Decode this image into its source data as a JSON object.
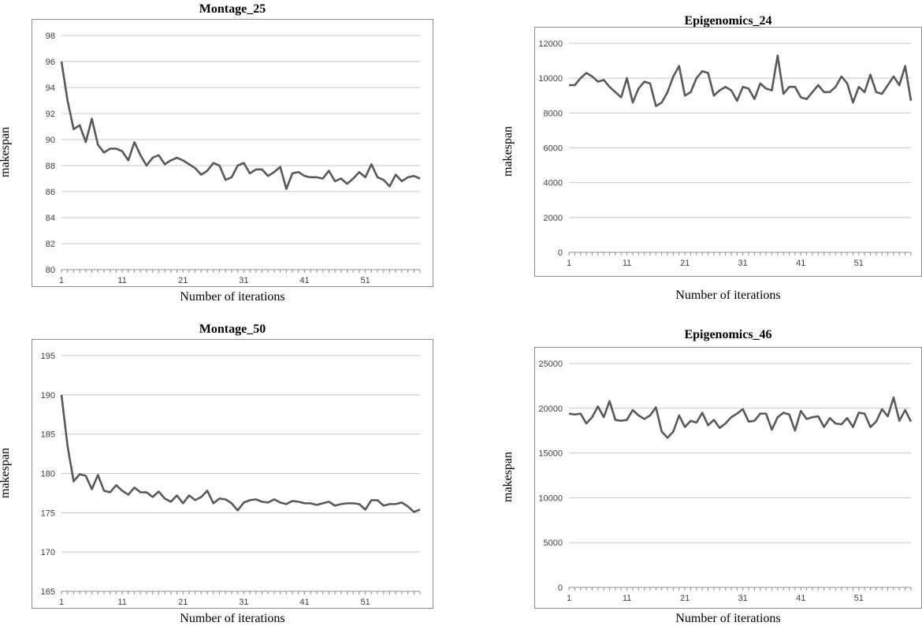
{
  "chart_data": [
    {
      "type": "line",
      "title": "Montage_25",
      "xlabel": "Number of iterations",
      "ylabel": "makespan",
      "ylim": [
        80,
        98
      ],
      "yticks": [
        "80",
        "82",
        "84",
        "86",
        "88",
        "90",
        "92",
        "94",
        "96",
        "98"
      ],
      "xticks": [
        "1",
        "11",
        "21",
        "31",
        "41",
        "51"
      ],
      "grid": true,
      "line_color": "#595959",
      "x": [
        1,
        2,
        3,
        4,
        5,
        6,
        7,
        8,
        9,
        10,
        11,
        12,
        13,
        14,
        15,
        16,
        17,
        18,
        19,
        20,
        21,
        22,
        23,
        24,
        25,
        26,
        27,
        28,
        29,
        30,
        31,
        32,
        33,
        34,
        35,
        36,
        37,
        38,
        39,
        40,
        41,
        42,
        43,
        44,
        45,
        46,
        47,
        48,
        49,
        50,
        51,
        52,
        53,
        54,
        55,
        56,
        57,
        58,
        59,
        60
      ],
      "values": [
        96.0,
        93.0,
        90.8,
        91.1,
        89.8,
        91.6,
        89.6,
        89.0,
        89.3,
        89.3,
        89.1,
        88.4,
        89.8,
        88.8,
        88.0,
        88.6,
        88.8,
        88.1,
        88.4,
        88.6,
        88.4,
        88.1,
        87.8,
        87.3,
        87.6,
        88.2,
        88.0,
        86.9,
        87.1,
        88.0,
        88.2,
        87.4,
        87.7,
        87.7,
        87.2,
        87.5,
        87.9,
        86.2,
        87.4,
        87.5,
        87.2,
        87.1,
        87.1,
        87.0,
        87.6,
        86.8,
        87.0,
        86.6,
        87.0,
        87.5,
        87.1,
        88.1,
        87.1,
        86.9,
        86.4,
        87.3,
        86.8,
        87.1,
        87.2,
        87.0
      ]
    },
    {
      "type": "line",
      "title": "Epigenomics_24",
      "xlabel": "Number of iterations",
      "ylabel": "makespan",
      "ylim": [
        0,
        12000
      ],
      "yticks": [
        "0",
        "2000",
        "4000",
        "6000",
        "8000",
        "10000",
        "12000"
      ],
      "xticks": [
        "1",
        "11",
        "21",
        "31",
        "41",
        "51"
      ],
      "grid": true,
      "line_color": "#595959",
      "x": [
        1,
        2,
        3,
        4,
        5,
        6,
        7,
        8,
        9,
        10,
        11,
        12,
        13,
        14,
        15,
        16,
        17,
        18,
        19,
        20,
        21,
        22,
        23,
        24,
        25,
        26,
        27,
        28,
        29,
        30,
        31,
        32,
        33,
        34,
        35,
        36,
        37,
        38,
        39,
        40,
        41,
        42,
        43,
        44,
        45,
        46,
        47,
        48,
        49,
        50,
        51,
        52,
        53,
        54,
        55,
        56,
        57,
        58,
        59,
        60
      ],
      "values": [
        9600,
        9600,
        10000,
        10300,
        10100,
        9800,
        9900,
        9500,
        9200,
        8900,
        10000,
        8600,
        9400,
        9800,
        9700,
        8400,
        8600,
        9200,
        10100,
        10700,
        9000,
        9200,
        10000,
        10400,
        10300,
        9000,
        9300,
        9500,
        9300,
        8700,
        9500,
        9400,
        8800,
        9700,
        9400,
        9300,
        11300,
        9100,
        9500,
        9500,
        8900,
        8800,
        9200,
        9600,
        9200,
        9200,
        9500,
        10100,
        9700,
        8600,
        9500,
        9200,
        10200,
        9200,
        9100,
        9600,
        10100,
        9600,
        10700,
        8700
      ]
    },
    {
      "type": "line",
      "title": "Montage_50",
      "xlabel": "Number of iterations",
      "ylabel": "makespan",
      "ylim": [
        165,
        195
      ],
      "yticks": [
        "165",
        "170",
        "175",
        "180",
        "185",
        "190",
        "195"
      ],
      "xticks": [
        "1",
        "11",
        "21",
        "31",
        "41",
        "51"
      ],
      "grid": true,
      "line_color": "#595959",
      "x": [
        1,
        2,
        3,
        4,
        5,
        6,
        7,
        8,
        9,
        10,
        11,
        12,
        13,
        14,
        15,
        16,
        17,
        18,
        19,
        20,
        21,
        22,
        23,
        24,
        25,
        26,
        27,
        28,
        29,
        30,
        31,
        32,
        33,
        34,
        35,
        36,
        37,
        38,
        39,
        40,
        41,
        42,
        43,
        44,
        45,
        46,
        47,
        48,
        49,
        50,
        51,
        52,
        53,
        54,
        55,
        56,
        57,
        58,
        59,
        60
      ],
      "values": [
        190.0,
        183.5,
        179.0,
        179.9,
        179.7,
        178.0,
        179.8,
        177.8,
        177.6,
        178.5,
        177.8,
        177.3,
        178.2,
        177.6,
        177.6,
        177.0,
        177.7,
        176.8,
        176.4,
        177.2,
        176.2,
        177.2,
        176.6,
        177.0,
        177.8,
        176.2,
        176.8,
        176.7,
        176.2,
        175.3,
        176.3,
        176.6,
        176.7,
        176.4,
        176.3,
        176.7,
        176.3,
        176.1,
        176.5,
        176.4,
        176.2,
        176.2,
        176.0,
        176.2,
        176.4,
        175.9,
        176.1,
        176.2,
        176.2,
        176.1,
        175.4,
        176.6,
        176.6,
        175.9,
        176.1,
        176.1,
        176.3,
        175.8,
        175.1,
        175.4
      ]
    },
    {
      "type": "line",
      "title": "Epigenomics_46",
      "xlabel": "Number of iterations",
      "ylabel": "makespan",
      "ylim": [
        0,
        25000
      ],
      "yticks": [
        "0",
        "5000",
        "10000",
        "15000",
        "20000",
        "25000"
      ],
      "xticks": [
        "1",
        "11",
        "21",
        "31",
        "41",
        "51"
      ],
      "grid": true,
      "line_color": "#595959",
      "x": [
        1,
        2,
        3,
        4,
        5,
        6,
        7,
        8,
        9,
        10,
        11,
        12,
        13,
        14,
        15,
        16,
        17,
        18,
        19,
        20,
        21,
        22,
        23,
        24,
        25,
        26,
        27,
        28,
        29,
        30,
        31,
        32,
        33,
        34,
        35,
        36,
        37,
        38,
        39,
        40,
        41,
        42,
        43,
        44,
        45,
        46,
        47,
        48,
        49,
        50,
        51,
        52,
        53,
        54,
        55,
        56,
        57,
        58,
        59,
        60
      ],
      "values": [
        19400,
        19300,
        19400,
        18300,
        19000,
        20200,
        19000,
        20800,
        18700,
        18600,
        18700,
        19800,
        19200,
        18800,
        19200,
        20100,
        17400,
        16700,
        17400,
        19200,
        17900,
        18600,
        18400,
        19500,
        18100,
        18700,
        17800,
        18300,
        19000,
        19400,
        19900,
        18500,
        18600,
        19400,
        19400,
        17600,
        19000,
        19500,
        19300,
        17500,
        19700,
        18800,
        19000,
        19100,
        17900,
        18900,
        18300,
        18200,
        18900,
        17900,
        19500,
        19400,
        17900,
        18500,
        19900,
        19100,
        21200,
        18600,
        19800,
        18500
      ]
    }
  ]
}
